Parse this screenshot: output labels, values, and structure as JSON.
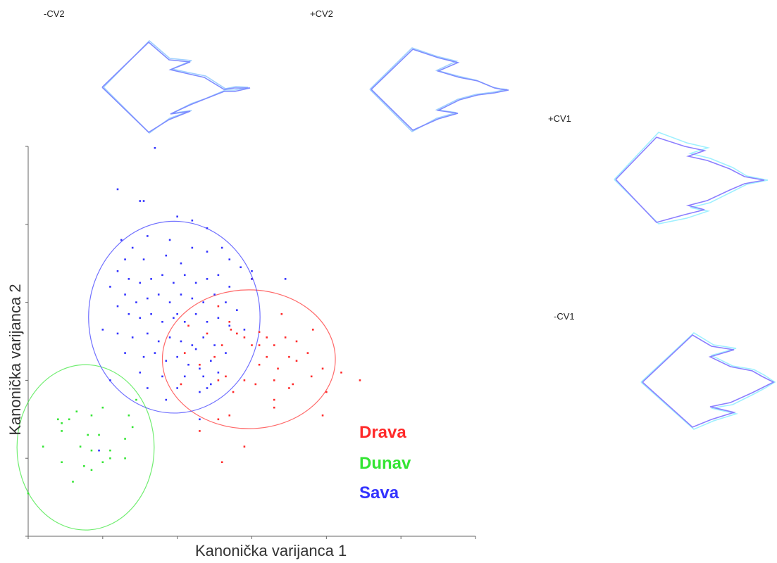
{
  "labels": {
    "neg_cv2": "-CV2",
    "pos_cv2": "+CV2",
    "pos_cv1": "+CV1",
    "neg_cv1": "-CV1"
  },
  "chart_data": {
    "type": "scatter",
    "title": "",
    "xlabel": "Kanonička varijanca 1",
    "ylabel": "Kanonička varijanca 2",
    "xlim": [
      0,
      6
    ],
    "ylim": [
      0,
      5
    ],
    "xticks": [
      0,
      1,
      2,
      3,
      4,
      5,
      6
    ],
    "yticks": [
      0,
      1,
      2,
      3,
      4,
      5
    ],
    "tick_labels_shown": false,
    "grid": false,
    "legend_position": "bottom-right",
    "series": [
      {
        "name": "Drava",
        "color": "#ff2a2a",
        "ellipse": {
          "cx": 2.96,
          "cy": 2.27,
          "rx": 1.16,
          "ry": 0.89
        },
        "points": [
          [
            3.0,
            3.3
          ],
          [
            3.4,
            2.85
          ],
          [
            2.55,
            2.95
          ],
          [
            2.7,
            2.75
          ],
          [
            2.72,
            2.65
          ],
          [
            2.9,
            2.55
          ],
          [
            3.1,
            2.62
          ],
          [
            3.1,
            2.45
          ],
          [
            3.2,
            2.55
          ],
          [
            3.3,
            2.45
          ],
          [
            3.45,
            2.55
          ],
          [
            3.6,
            2.5
          ],
          [
            3.82,
            2.65
          ],
          [
            3.5,
            2.3
          ],
          [
            3.1,
            2.2
          ],
          [
            2.4,
            2.6
          ],
          [
            2.15,
            2.7
          ],
          [
            2.1,
            2.35
          ],
          [
            2.3,
            2.2
          ],
          [
            2.5,
            2.3
          ],
          [
            2.6,
            2.45
          ],
          [
            3.75,
            2.35
          ],
          [
            3.95,
            2.15
          ],
          [
            4.2,
            2.1
          ],
          [
            3.35,
            2.15
          ],
          [
            2.55,
            2.0
          ],
          [
            2.65,
            2.05
          ],
          [
            2.9,
            2.0
          ],
          [
            3.05,
            1.95
          ],
          [
            3.3,
            2.0
          ],
          [
            3.55,
            1.95
          ],
          [
            3.8,
            2.05
          ],
          [
            2.75,
            1.85
          ],
          [
            3.3,
            1.75
          ],
          [
            3.5,
            1.9
          ],
          [
            3.95,
            1.55
          ],
          [
            3.6,
            2.25
          ],
          [
            2.55,
            1.5
          ],
          [
            2.3,
            1.35
          ],
          [
            2.7,
            1.55
          ],
          [
            3.3,
            1.65
          ],
          [
            2.9,
            1.15
          ],
          [
            2.6,
            0.95
          ],
          [
            4.45,
            2.0
          ],
          [
            4.0,
            1.85
          ],
          [
            2.05,
            1.95
          ],
          [
            3.2,
            2.3
          ],
          [
            2.8,
            2.6
          ],
          [
            3.0,
            2.45
          ]
        ]
      },
      {
        "name": "Dunav",
        "color": "#33e533",
        "ellipse": {
          "cx": 0.77,
          "cy": 1.14,
          "rx": 0.92,
          "ry": 1.06
        },
        "points": [
          [
            0.65,
            1.6
          ],
          [
            0.55,
            1.5
          ],
          [
            0.45,
            1.45
          ],
          [
            0.8,
            1.3
          ],
          [
            0.4,
            1.5
          ],
          [
            0.95,
            1.3
          ],
          [
            1.0,
            1.65
          ],
          [
            1.1,
            1.0
          ],
          [
            0.7,
            1.15
          ],
          [
            0.2,
            1.15
          ],
          [
            0.45,
            0.95
          ],
          [
            0.85,
            0.85
          ],
          [
            1.0,
            0.95
          ],
          [
            1.3,
            1.25
          ],
          [
            0.6,
            0.7
          ],
          [
            1.35,
            1.55
          ],
          [
            0.0,
            0.55
          ],
          [
            0.75,
            0.9
          ],
          [
            0.85,
            1.1
          ],
          [
            1.1,
            1.1
          ],
          [
            0.45,
            1.35
          ],
          [
            0.85,
            1.55
          ],
          [
            1.4,
            1.4
          ],
          [
            1.3,
            1.0
          ],
          [
            1.45,
            1.75
          ]
        ]
      },
      {
        "name": "Sava",
        "color": "#3333ff",
        "ellipse": {
          "cx": 1.96,
          "cy": 2.81,
          "rx": 1.15,
          "ry": 1.23
        },
        "points": [
          [
            1.7,
            4.98
          ],
          [
            1.2,
            4.45
          ],
          [
            1.5,
            4.3
          ],
          [
            1.55,
            4.3
          ],
          [
            2.0,
            4.1
          ],
          [
            2.4,
            3.95
          ],
          [
            2.2,
            4.05
          ],
          [
            1.9,
            3.8
          ],
          [
            1.6,
            3.85
          ],
          [
            1.4,
            3.7
          ],
          [
            1.3,
            3.55
          ],
          [
            1.55,
            3.55
          ],
          [
            1.85,
            3.6
          ],
          [
            2.05,
            3.5
          ],
          [
            2.2,
            3.7
          ],
          [
            2.4,
            3.65
          ],
          [
            2.6,
            3.7
          ],
          [
            2.7,
            3.55
          ],
          [
            2.85,
            3.45
          ],
          [
            3.0,
            3.3
          ],
          [
            3.45,
            3.3
          ],
          [
            1.2,
            3.4
          ],
          [
            1.35,
            3.3
          ],
          [
            1.5,
            3.25
          ],
          [
            1.65,
            3.3
          ],
          [
            1.8,
            3.35
          ],
          [
            1.95,
            3.25
          ],
          [
            2.1,
            3.35
          ],
          [
            2.25,
            3.25
          ],
          [
            2.4,
            3.3
          ],
          [
            2.55,
            3.35
          ],
          [
            2.7,
            3.2
          ],
          [
            1.1,
            3.2
          ],
          [
            1.3,
            3.1
          ],
          [
            1.45,
            3.0
          ],
          [
            1.6,
            3.05
          ],
          [
            1.75,
            3.1
          ],
          [
            1.9,
            3.0
          ],
          [
            2.05,
            3.1
          ],
          [
            2.2,
            3.05
          ],
          [
            2.35,
            3.0
          ],
          [
            2.5,
            3.1
          ],
          [
            2.65,
            3.0
          ],
          [
            2.8,
            2.9
          ],
          [
            1.2,
            2.95
          ],
          [
            1.35,
            2.85
          ],
          [
            1.5,
            2.8
          ],
          [
            1.65,
            2.85
          ],
          [
            1.8,
            2.75
          ],
          [
            1.95,
            2.8
          ],
          [
            2.1,
            2.75
          ],
          [
            2.25,
            2.85
          ],
          [
            2.4,
            2.75
          ],
          [
            2.55,
            2.8
          ],
          [
            2.7,
            2.7
          ],
          [
            2.9,
            2.65
          ],
          [
            1.0,
            2.65
          ],
          [
            1.2,
            2.6
          ],
          [
            1.4,
            2.55
          ],
          [
            1.6,
            2.6
          ],
          [
            1.75,
            2.5
          ],
          [
            1.9,
            2.55
          ],
          [
            2.05,
            2.5
          ],
          [
            2.2,
            2.45
          ],
          [
            2.35,
            2.55
          ],
          [
            2.5,
            2.45
          ],
          [
            2.65,
            2.35
          ],
          [
            1.3,
            2.35
          ],
          [
            1.55,
            2.3
          ],
          [
            1.7,
            2.35
          ],
          [
            1.85,
            2.25
          ],
          [
            2.0,
            2.3
          ],
          [
            2.15,
            2.2
          ],
          [
            2.3,
            2.15
          ],
          [
            2.45,
            2.25
          ],
          [
            1.5,
            2.1
          ],
          [
            1.8,
            2.05
          ],
          [
            2.1,
            2.05
          ],
          [
            2.35,
            2.05
          ],
          [
            1.1,
            2.0
          ],
          [
            2.25,
            2.4
          ],
          [
            2.55,
            2.1
          ],
          [
            1.6,
            1.9
          ],
          [
            2.4,
            1.9
          ],
          [
            1.85,
            1.75
          ],
          [
            2.0,
            2.85
          ],
          [
            1.25,
            3.8
          ],
          [
            3.0,
            3.4
          ],
          [
            2.3,
            1.5
          ],
          [
            2.3,
            1.85
          ],
          [
            2.45,
            1.95
          ],
          [
            2.0,
            1.9
          ],
          [
            0.95,
            1.1
          ]
        ]
      }
    ]
  }
}
